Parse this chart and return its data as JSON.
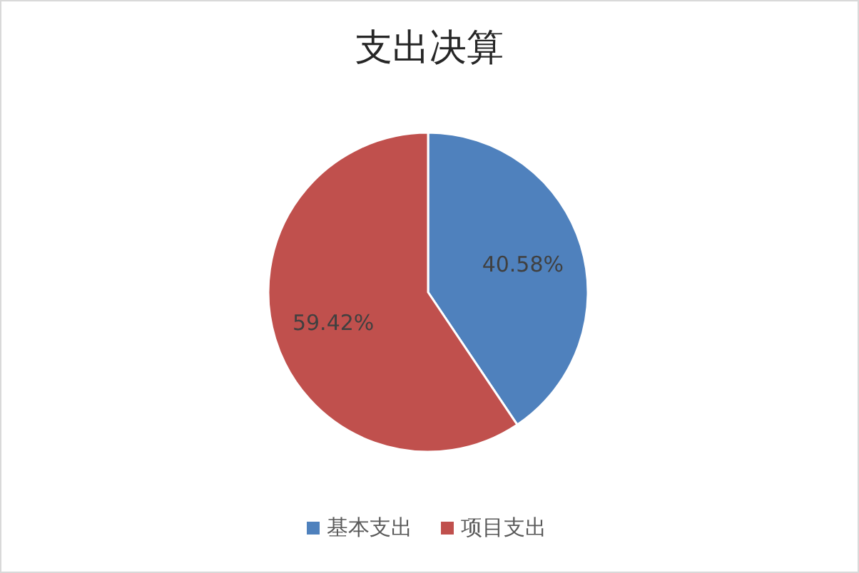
{
  "chart_data": {
    "type": "pie",
    "title": "支出决算",
    "categories": [
      "基本支出",
      "项目支出"
    ],
    "values": [
      40.58,
      59.42
    ],
    "colors": [
      "#4f81bd",
      "#c0504d"
    ],
    "value_labels": [
      "40.58%",
      "59.42%"
    ],
    "legend": "bottom"
  }
}
